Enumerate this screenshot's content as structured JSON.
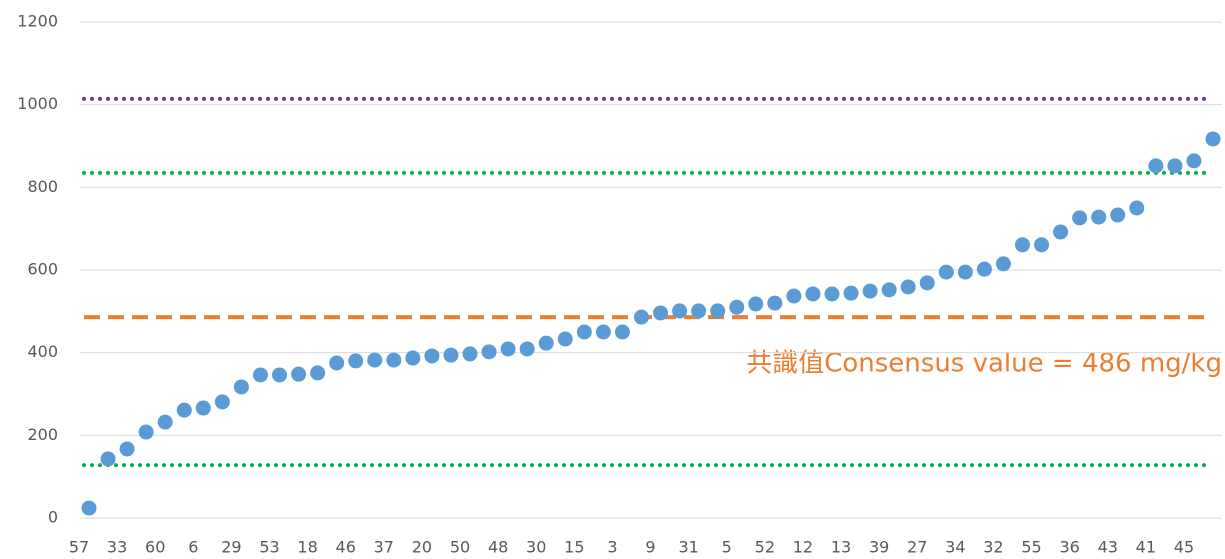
{
  "chart_data": {
    "type": "scatter",
    "annotation": "共識值Consensus value = 486 mg/kg",
    "categories": [
      "57",
      null,
      "33",
      null,
      "60",
      null,
      "6",
      null,
      "29",
      null,
      "53",
      null,
      "18",
      null,
      "46",
      null,
      "37",
      null,
      "20",
      null,
      "50",
      null,
      "48",
      null,
      "30",
      null,
      "15",
      null,
      "3",
      null,
      "9",
      null,
      "31",
      null,
      "5",
      null,
      "52",
      null,
      "12",
      null,
      "13",
      null,
      "39",
      null,
      "27",
      null,
      "34",
      null,
      "32",
      null,
      "55",
      null,
      "36",
      null,
      "43",
      null,
      "41",
      null,
      "45",
      null
    ],
    "values": [
      24,
      143,
      167,
      208,
      232,
      261,
      266,
      281,
      317,
      346,
      346,
      348,
      351,
      375,
      380,
      382,
      382,
      387,
      392,
      394,
      397,
      402,
      409,
      409,
      423,
      433,
      450,
      450,
      450,
      486,
      496,
      501,
      501,
      501,
      510,
      518,
      520,
      537,
      542,
      542,
      544,
      549,
      552,
      559,
      569,
      595,
      595,
      602,
      615,
      661,
      661,
      692,
      726,
      728,
      733,
      750,
      852,
      852,
      864,
      917
    ],
    "color": "#5b9bd5",
    "reference_lines": [
      {
        "value": 1014,
        "color": "#7030a0",
        "style": "dotted"
      },
      {
        "value": 835,
        "color": "#00b050",
        "style": "dotted"
      },
      {
        "value": 486,
        "color": "#ed7d31",
        "style": "dashed"
      },
      {
        "value": 128,
        "color": "#00b050",
        "style": "dotted"
      }
    ],
    "annotation_color": "#ed7d31",
    "ylim": [
      0,
      1200
    ],
    "yticks": [
      0,
      200,
      400,
      600,
      800,
      1000,
      1200
    ],
    "grid": true
  }
}
